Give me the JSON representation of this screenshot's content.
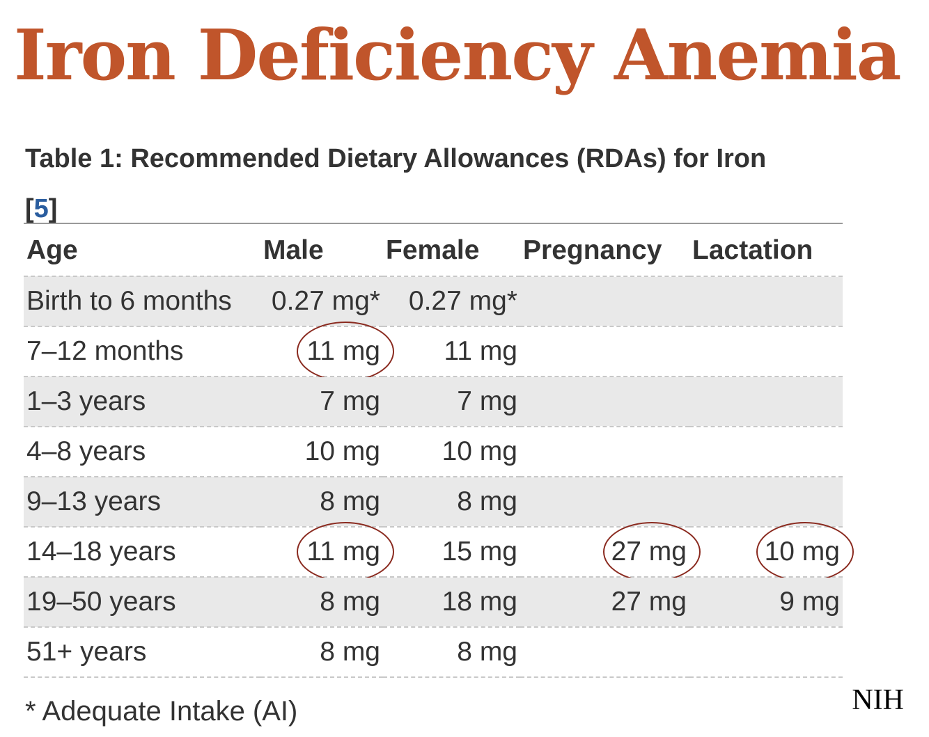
{
  "title": "Iron Deficiency Anemia",
  "table_caption": {
    "text": "Table 1: Recommended Dietary Allowances (RDAs) for Iron",
    "ref_open": "[",
    "ref": "5",
    "ref_close": "]"
  },
  "columns": [
    "Age",
    "Male",
    "Female",
    "Pregnancy",
    "Lactation"
  ],
  "rows": [
    {
      "age": "Birth to 6 months",
      "male": "0.27 mg*",
      "female": "0.27 mg*",
      "pregnancy": "",
      "lactation": ""
    },
    {
      "age": "7–12 months",
      "male": "11 mg",
      "female": "11 mg",
      "pregnancy": "",
      "lactation": ""
    },
    {
      "age": "1–3 years",
      "male": "7 mg",
      "female": "7 mg",
      "pregnancy": "",
      "lactation": ""
    },
    {
      "age": "4–8 years",
      "male": "10 mg",
      "female": "10 mg",
      "pregnancy": "",
      "lactation": ""
    },
    {
      "age": "9–13 years",
      "male": "8 mg",
      "female": "8 mg",
      "pregnancy": "",
      "lactation": ""
    },
    {
      "age": "14–18 years",
      "male": "11 mg",
      "female": "15 mg",
      "pregnancy": "27 mg",
      "lactation": "10 mg"
    },
    {
      "age": "19–50 years",
      "male": "8 mg",
      "female": "18 mg",
      "pregnancy": "27 mg",
      "lactation": "9 mg"
    },
    {
      "age": "51+ years",
      "male": "8 mg",
      "female": "8 mg",
      "pregnancy": "",
      "lactation": ""
    }
  ],
  "highlighted_cells": [
    "1.male",
    "5.male",
    "5.pregnancy",
    "5.lactation"
  ],
  "footnote": "* Adequate Intake (AI)",
  "source": "NIH",
  "colors": {
    "title": "#c0552b",
    "annotation_circle": "#8a2a1f",
    "row_stripe": "#e9e9e9",
    "link": "#2a5d9f"
  }
}
